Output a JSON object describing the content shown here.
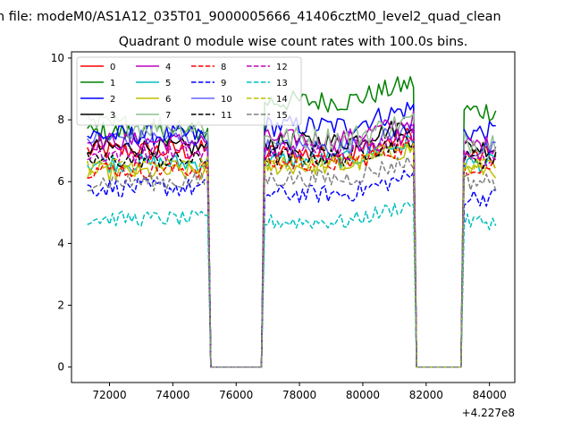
{
  "chart_data": {
    "type": "line",
    "suptitle": "n file: modeM0/AS1A12_035T01_9000005666_41406cztM0_level2_quad_clean",
    "title": "Quadrant 0 module wise count rates with 100.0s bins.",
    "xlabel": "",
    "ylabel": "",
    "x_offset_label": "+4.227e8",
    "xlim": [
      70800,
      84800
    ],
    "ylim": [
      -0.5,
      10.2
    ],
    "x_ticks": [
      72000,
      74000,
      76000,
      78000,
      80000,
      82000,
      84000
    ],
    "x_tick_labels": [
      "72000",
      "74000",
      "76000",
      "78000",
      "80000",
      "82000",
      "84000"
    ],
    "y_ticks": [
      0,
      2,
      4,
      6,
      8,
      10
    ],
    "y_tick_labels": [
      "0",
      "2",
      "4",
      "6",
      "8",
      "10"
    ],
    "x_start": 71300,
    "x_step": 100,
    "n_points": 130,
    "gaps": [
      [
        75150,
        76850
      ],
      [
        81650,
        83150
      ]
    ],
    "segments": [
      [
        71300,
        75100
      ],
      [
        76900,
        81600
      ],
      [
        83200,
        84200
      ]
    ],
    "legend": {
      "location": "upper left",
      "columns": 4
    },
    "series": [
      {
        "name": "0",
        "color": "#ff0000",
        "style": "solid",
        "levels": [
          7.0,
          6.9,
          6.8
        ],
        "noise": 0.35
      },
      {
        "name": "1",
        "color": "#008000",
        "style": "solid",
        "levels": [
          7.6,
          8.6,
          8.3
        ],
        "noise": 0.35
      },
      {
        "name": "2",
        "color": "#0000ff",
        "style": "solid",
        "levels": [
          7.5,
          7.8,
          7.6
        ],
        "noise": 0.35
      },
      {
        "name": "3",
        "color": "#000000",
        "style": "solid",
        "levels": [
          7.1,
          7.3,
          7.1
        ],
        "noise": 0.3
      },
      {
        "name": "4",
        "color": "#bf00bf",
        "style": "solid",
        "levels": [
          7.3,
          7.4,
          7.2
        ],
        "noise": 0.3
      },
      {
        "name": "5",
        "color": "#00bfbf",
        "style": "solid",
        "levels": [
          6.6,
          6.7,
          6.6
        ],
        "noise": 0.3
      },
      {
        "name": "6",
        "color": "#bfbf00",
        "style": "solid",
        "levels": [
          6.3,
          6.5,
          6.4
        ],
        "noise": 0.3
      },
      {
        "name": "7",
        "color": "#90c090",
        "style": "solid",
        "levels": [
          7.8,
          7.4,
          7.3
        ],
        "noise": 0.4
      },
      {
        "name": "8",
        "color": "#ff0000",
        "style": "dashed",
        "levels": [
          6.4,
          6.6,
          6.5
        ],
        "noise": 0.3
      },
      {
        "name": "9",
        "color": "#0000ff",
        "style": "dashed",
        "levels": [
          5.8,
          5.6,
          5.5
        ],
        "noise": 0.3
      },
      {
        "name": "10",
        "color": "#0000ff",
        "style": "solid",
        "levels": [
          7.4,
          7.1,
          7.0
        ],
        "noise": 0.3,
        "alpha": 0.6
      },
      {
        "name": "11",
        "color": "#000000",
        "style": "dashed",
        "levels": [
          6.7,
          6.8,
          6.7
        ],
        "noise": 0.3
      },
      {
        "name": "12",
        "color": "#bf00bf",
        "style": "dashed",
        "levels": [
          6.9,
          7.0,
          6.8
        ],
        "noise": 0.3
      },
      {
        "name": "13",
        "color": "#00bfbf",
        "style": "dashed",
        "levels": [
          4.8,
          4.7,
          4.7
        ],
        "noise": 0.25
      },
      {
        "name": "14",
        "color": "#bfbf00",
        "style": "dashed",
        "levels": [
          6.5,
          6.6,
          6.5
        ],
        "noise": 0.3
      },
      {
        "name": "15",
        "color": "#808080",
        "style": "dashed",
        "levels": [
          6.0,
          6.1,
          6.0
        ],
        "noise": 0.3
      }
    ]
  }
}
